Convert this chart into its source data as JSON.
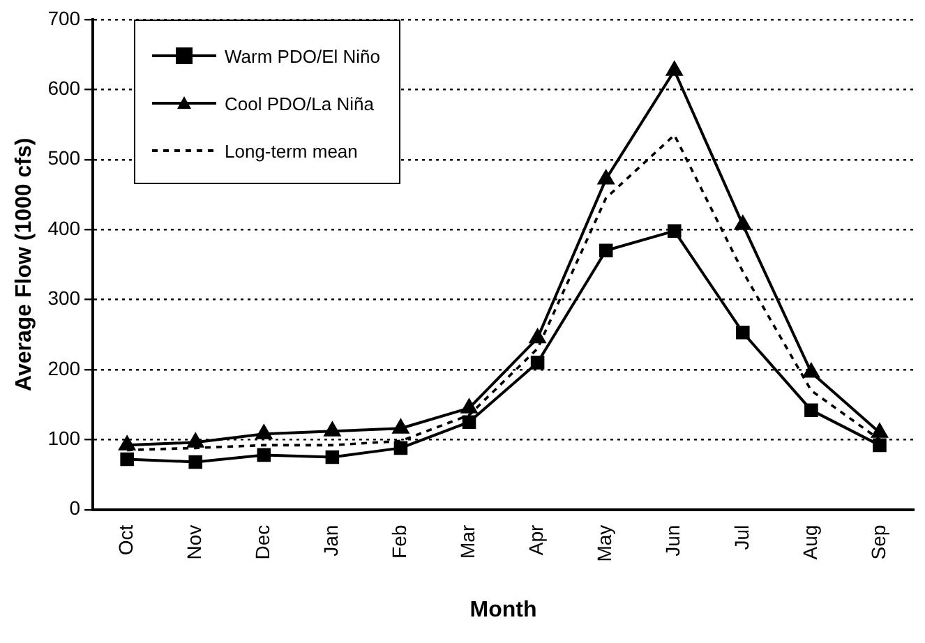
{
  "chart_data": {
    "type": "line",
    "xlabel": "Month",
    "ylabel": "Average Flow (1000 cfs)",
    "categories": [
      "Oct",
      "Nov",
      "Dec",
      "Jan",
      "Feb",
      "Mar",
      "Apr",
      "May",
      "Jun",
      "Jul",
      "Aug",
      "Sep"
    ],
    "ylim": [
      0,
      700
    ],
    "yticks": [
      0,
      100,
      200,
      300,
      400,
      500,
      600,
      700
    ],
    "grid": "y",
    "legend": "top left",
    "series": [
      {
        "name": "Warm PDO/El Niño",
        "color": "#000000",
        "marker": "square",
        "line_style": "solid",
        "values": [
          72,
          68,
          78,
          75,
          88,
          125,
          210,
          370,
          398,
          253,
          142,
          92
        ]
      },
      {
        "name": "Cool PDO/La Niña",
        "color": "#000000",
        "marker": "triangle",
        "line_style": "solid",
        "values": [
          92,
          96,
          108,
          112,
          116,
          145,
          245,
          472,
          627,
          407,
          196,
          110
        ]
      },
      {
        "name": "Long-term mean",
        "color": "#000000",
        "marker": "none",
        "line_style": "dashed",
        "values": [
          85,
          88,
          92,
          92,
          98,
          135,
          230,
          445,
          535,
          340,
          170,
          100
        ]
      }
    ]
  }
}
